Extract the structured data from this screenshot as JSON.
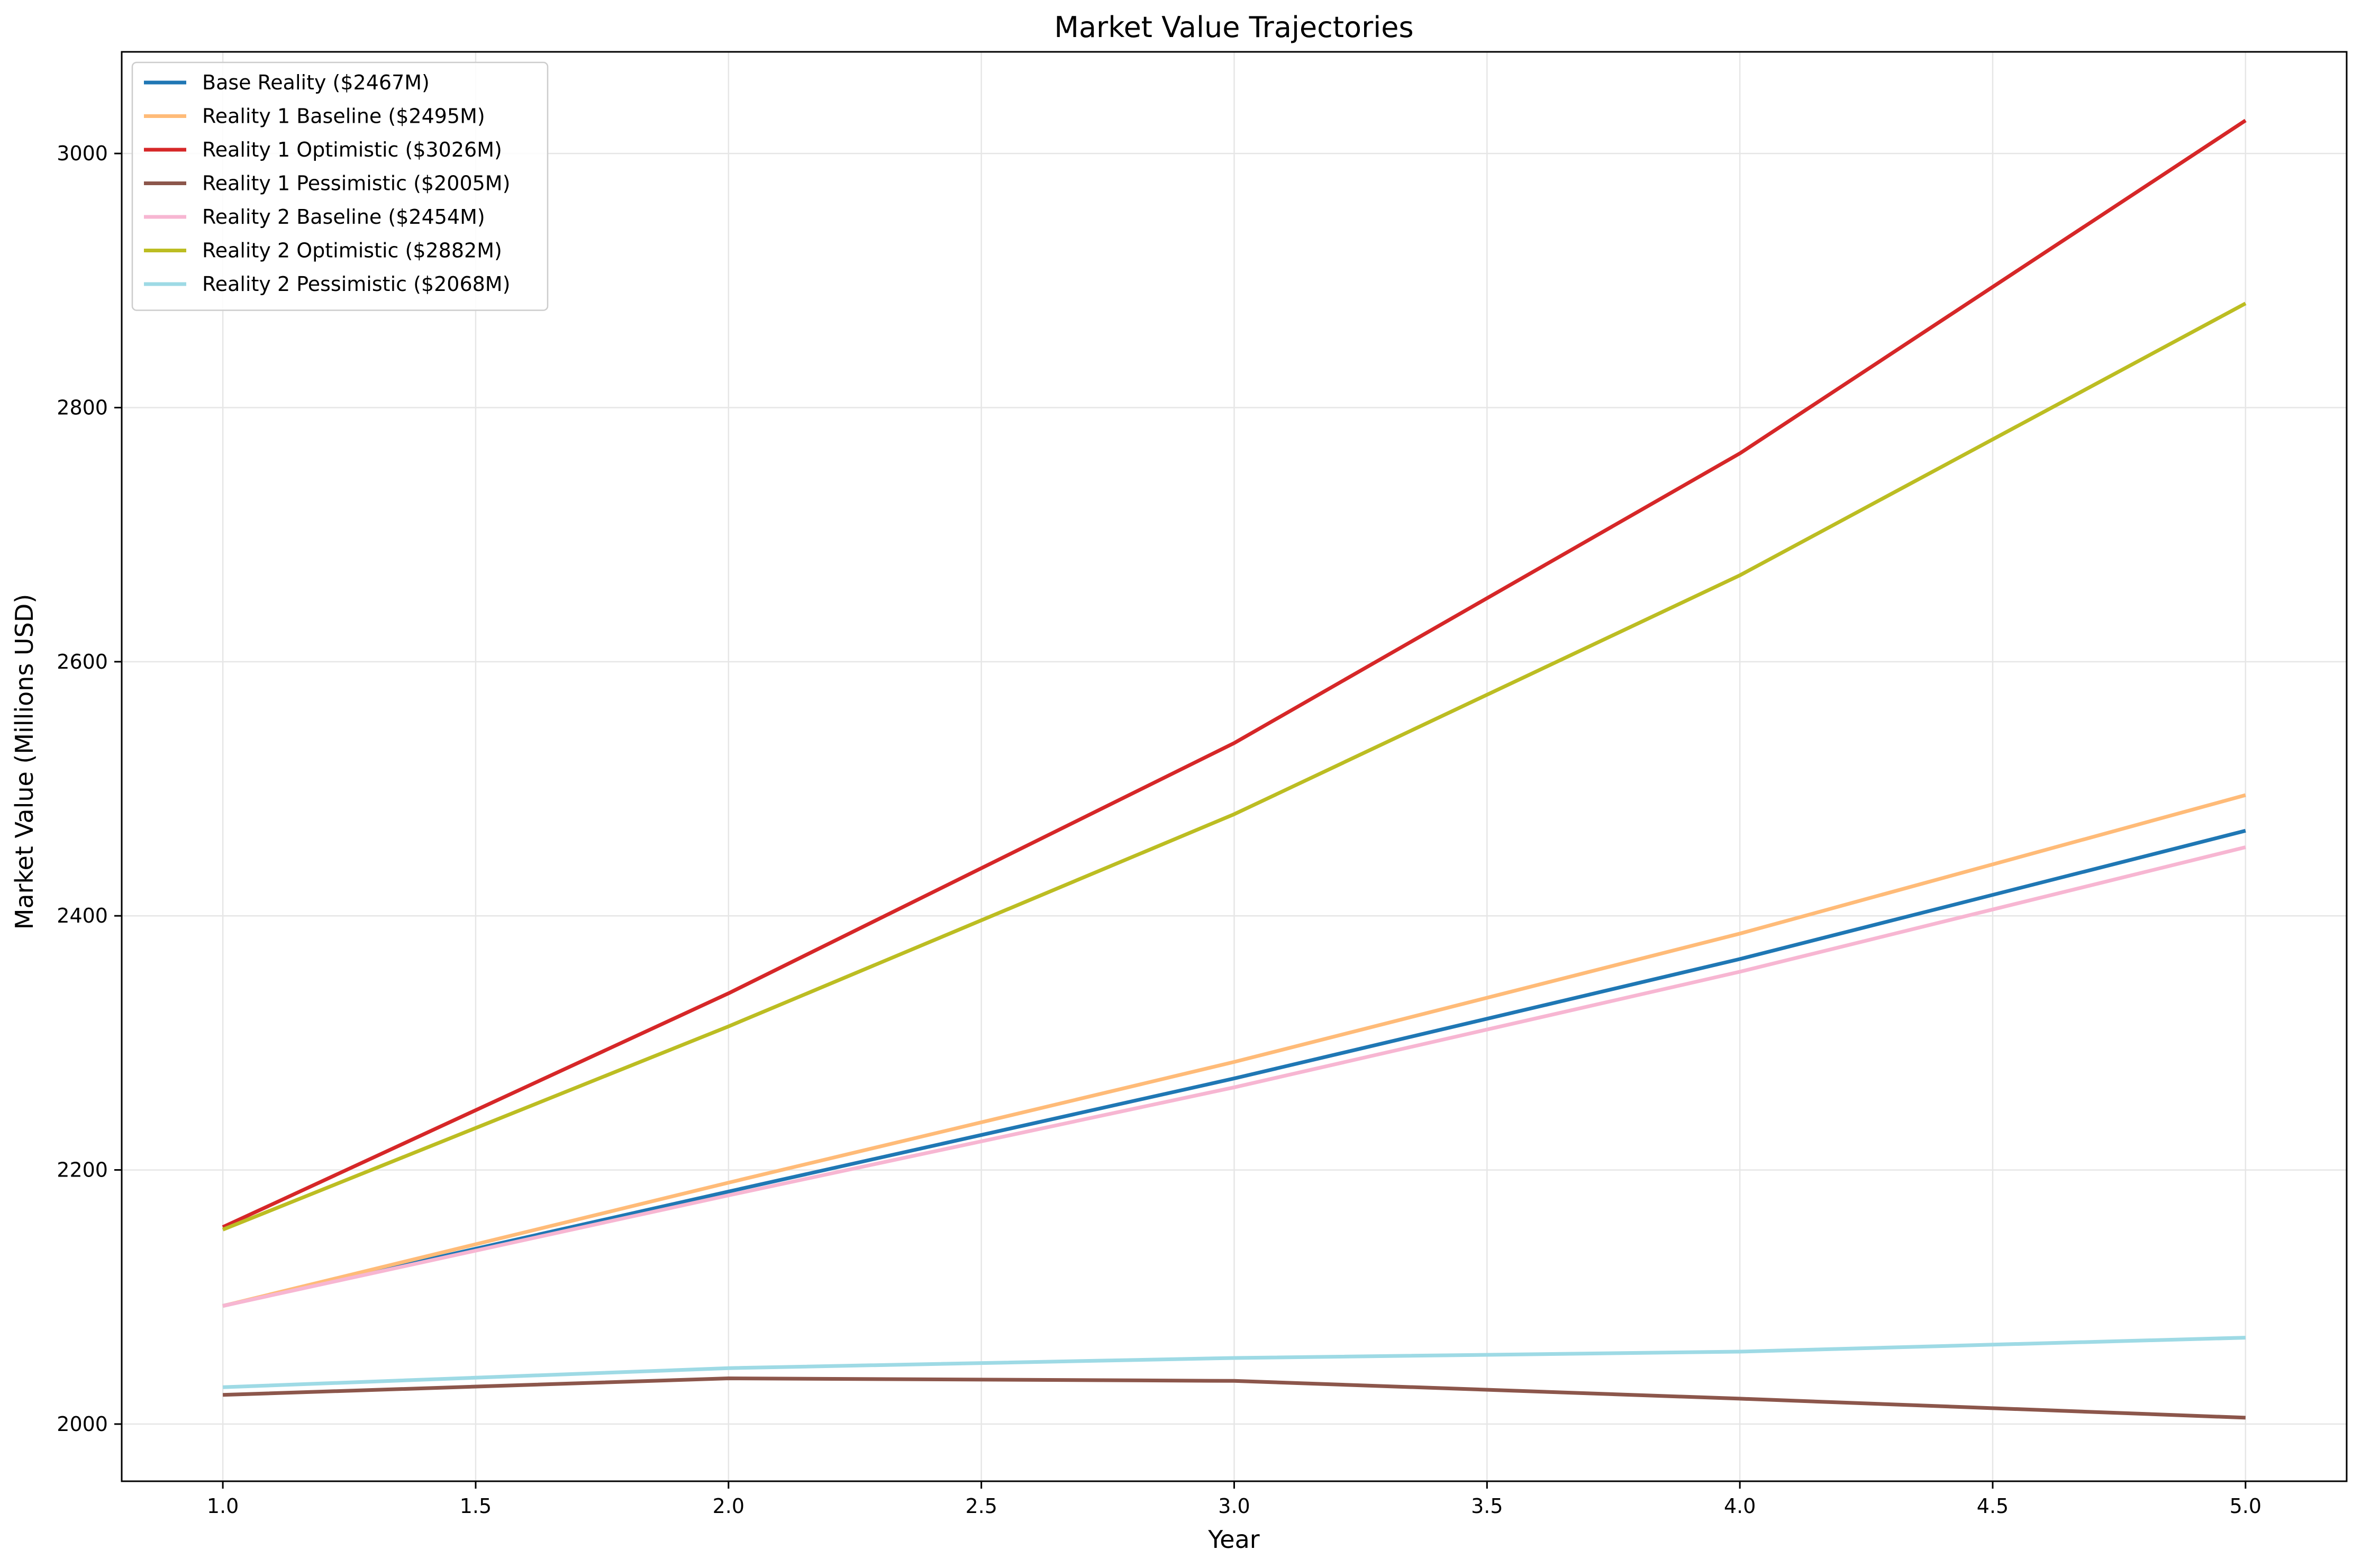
{
  "chart_data": {
    "type": "line",
    "title": "Market Value Trajectories",
    "xlabel": "Year",
    "ylabel": "Market Value (Millions USD)",
    "x": [
      1,
      2,
      3,
      4,
      5
    ],
    "xlim": [
      0.8,
      5.2
    ],
    "ylim": [
      1955,
      3080
    ],
    "xticks": [
      "1.0",
      "1.5",
      "2.0",
      "2.5",
      "3.0",
      "3.5",
      "4.0",
      "4.5",
      "5.0"
    ],
    "yticks": [
      "2000",
      "2200",
      "2400",
      "2600",
      "2800",
      "3000"
    ],
    "grid": true,
    "legend_position": "upper-left",
    "series": [
      {
        "name": "Base Reality ($2467M)",
        "color": "#1f77b4",
        "values": [
          2093,
          2183,
          2272,
          2366,
          2467
        ]
      },
      {
        "name": "Reality 1 Baseline ($2495M)",
        "color": "#ffbb78",
        "values": [
          2093,
          2190,
          2285,
          2386,
          2495
        ]
      },
      {
        "name": "Reality 1 Optimistic ($3026M)",
        "color": "#d62728",
        "values": [
          2155,
          2339,
          2536,
          2764,
          3026
        ]
      },
      {
        "name": "Reality 1 Pessimistic ($2005M)",
        "color": "#8c564b",
        "values": [
          2023,
          2036,
          2034,
          2020,
          2005
        ]
      },
      {
        "name": "Reality 2 Baseline ($2454M)",
        "color": "#f7b6d2",
        "values": [
          2093,
          2180,
          2265,
          2356,
          2454
        ]
      },
      {
        "name": "Reality 2 Optimistic ($2882M)",
        "color": "#bcbd22",
        "values": [
          2153,
          2313,
          2480,
          2668,
          2882
        ]
      },
      {
        "name": "Reality 2 Pessimistic ($2068M)",
        "color": "#9edae5",
        "values": [
          2029,
          2044,
          2052,
          2057,
          2068
        ]
      }
    ]
  }
}
